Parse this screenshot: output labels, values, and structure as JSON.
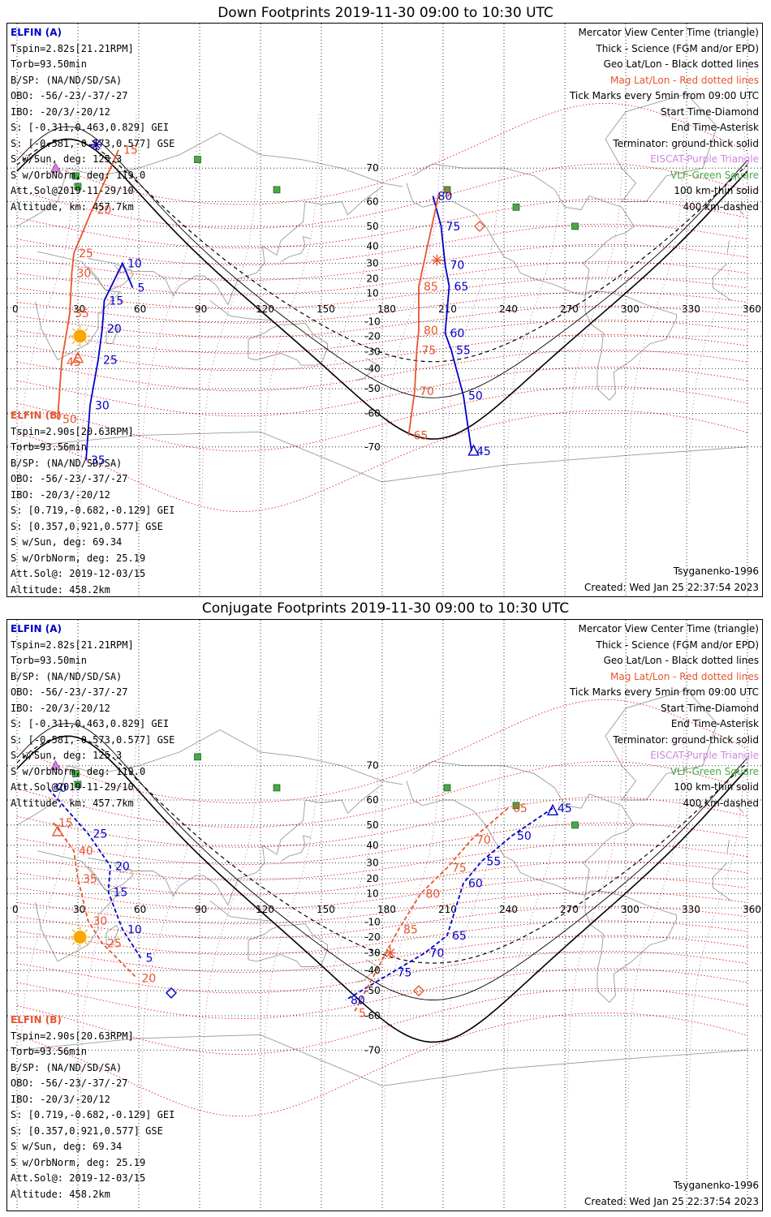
{
  "panels": [
    {
      "title": "Down Footprints 2019-11-30 09:00 to 10:30 UTC",
      "elfin_a": {
        "name": "ELFIN (A)",
        "lines": [
          "Tspin=2.82s[21.21RPM]",
          "Torb=93.50min",
          "B/SP: (NA/ND/SD/SA)",
          "OBO: -56/-23/-37/-27",
          "IBO: -20/3/-20/12",
          "S: [-0.311,0.463,0.829] GEI",
          "S: [-0.581,-0.573,0.577] GSE",
          "S w/Sun, deg: 125.3",
          "S w/OrbNorm, deg: 119.0",
          "Att.Sol@2019-11-29/10",
          "Altitude, km: 457.7km"
        ]
      },
      "elfin_b": {
        "name": "ELFIN (B)",
        "lines": [
          "Tspin=2.90s[20.63RPM]",
          "Torb=93.56min",
          "B/SP: (NA/ND/SD/SA)",
          "OBO: -56/-23/-37/-27",
          "IBO: -20/3/-20/12",
          "S: [0.719,-0.682,-0.129] GEI",
          "S: [0.357,0.921,0.577] GSE",
          "S w/Sun, deg: 69.34",
          "S w/OrbNorm, deg: 25.19",
          "Att.Sol@: 2019-12-03/15",
          "Altitude: 458.2km"
        ]
      },
      "legend": [
        "Mercator View Center Time (triangle)",
        "Thick - Science (FGM and/or EPD)",
        "Geo Lat/Lon - Black dotted lines",
        "Mag Lat/Lon - Red dotted lines",
        "Tick Marks every 5min from 09:00 UTC",
        "Start Time-Diamond",
        "End Time-Asterisk",
        "Terminator: ground-thick solid",
        "EISCAT-Purple Triangle",
        "VLF-Green Square",
        "100 km-thin solid",
        "400 km-dashed"
      ],
      "model": "Tsyganenko-1996",
      "created": "Created: Wed Jan 25 22:37:54 2023",
      "a_ticks": [
        {
          "label": "80",
          "lon": 205,
          "lat": 62
        },
        {
          "label": "75",
          "lon": 209,
          "lat": 50
        },
        {
          "label": "70",
          "lon": 211,
          "lat": 29
        },
        {
          "label": "65",
          "lon": 213,
          "lat": 15
        },
        {
          "label": "60",
          "lon": 211,
          "lat": -18
        },
        {
          "label": "55",
          "lon": 214,
          "lat": -29
        },
        {
          "label": "50",
          "lon": 220,
          "lat": -53
        },
        {
          "label": "45",
          "lon": 224,
          "lat": -71
        },
        {
          "label": "5",
          "lon": 57,
          "lat": 14
        },
        {
          "label": "10",
          "lon": 52,
          "lat": 30
        },
        {
          "label": "15",
          "lon": 43,
          "lat": 5
        },
        {
          "label": "20",
          "lon": 42,
          "lat": -15
        },
        {
          "label": "25",
          "lon": 40,
          "lat": -35
        },
        {
          "label": "30",
          "lon": 36,
          "lat": -57
        },
        {
          "label": "35",
          "lon": 34,
          "lat": -73
        }
      ],
      "b_ticks": [
        {
          "label": "5",
          "lon": 208,
          "lat": 63
        },
        {
          "label": "85",
          "lon": 198,
          "lat": 15
        },
        {
          "label": "80",
          "lon": 198,
          "lat": -16
        },
        {
          "label": "75",
          "lon": 197,
          "lat": -29
        },
        {
          "label": "70",
          "lon": 196,
          "lat": -51
        },
        {
          "label": "65",
          "lon": 193,
          "lat": -67
        },
        {
          "label": "15",
          "lon": 50,
          "lat": 74
        },
        {
          "label": "20",
          "lon": 37,
          "lat": 57
        },
        {
          "label": "25",
          "lon": 28,
          "lat": 36
        },
        {
          "label": "30",
          "lon": 27,
          "lat": 24
        },
        {
          "label": "35",
          "lon": 26,
          "lat": -4
        },
        {
          "label": "45",
          "lon": 22,
          "lat": -36
        },
        {
          "label": "50",
          "lon": 20,
          "lat": -62
        }
      ]
    },
    {
      "title": "Conjugate Footprints 2019-11-30 09:00 to 10:30 UTC",
      "elfin_a": {
        "name": "ELFIN (A)",
        "lines": [
          "Tspin=2.82s[21.21RPM]",
          "Torb=93.50min",
          "B/SP: (NA/ND/SD/SA)",
          "OBO: -56/-23/-37/-27",
          "IBO: -20/3/-20/12",
          "S: [-0.311,0.463,0.829] GEI",
          "S: [-0.581,-0.573,0.577] GSE",
          "S w/Sun, deg: 125.3",
          "S w/OrbNorm, deg: 119.0",
          "Att.Sol@2019-11-29/10",
          "Altitude, km: 457.7km"
        ]
      },
      "elfin_b": {
        "name": "ELFIN (B)",
        "lines": [
          "Tspin=2.90s[20.63RPM]",
          "Torb=93.56min",
          "B/SP: (NA/ND/SD/SA)",
          "OBO: -56/-23/-37/-27",
          "IBO: -20/3/-20/12",
          "S: [0.719,-0.682,-0.129] GEI",
          "S: [0.357,0.921,0.577] GSE",
          "S w/Sun, deg: 69.34",
          "S w/OrbNorm, deg: 25.19",
          "Att.Sol@: 2019-12-03/15",
          "Altitude: 458.2km"
        ]
      },
      "legend": [
        "Mercator View Center Time (triangle)",
        "Thick - Science (FGM and/or EPD)",
        "Geo Lat/Lon - Black dotted lines",
        "Mag Lat/Lon - Red dotted lines",
        "Tick Marks every 5min from 09:00 UTC",
        "Start Time-Diamond",
        "End Time-Asterisk",
        "Terminator: ground-thick solid",
        "EISCAT-Purple Triangle",
        "VLF-Green Square",
        "100 km-thin solid",
        "400 km-dashed"
      ],
      "model": "Tsyganenko-1996",
      "created": "Created: Wed Jan 25 22:37:54 2023",
      "a_ticks": [
        {
          "label": "45",
          "lon": 264,
          "lat": 57
        },
        {
          "label": "50",
          "lon": 244,
          "lat": 45
        },
        {
          "label": "55",
          "lon": 229,
          "lat": 31
        },
        {
          "label": "60",
          "lon": 220,
          "lat": 17
        },
        {
          "label": "65",
          "lon": 212,
          "lat": -19
        },
        {
          "label": "70",
          "lon": 201,
          "lat": -30
        },
        {
          "label": "75",
          "lon": 185,
          "lat": -41
        },
        {
          "label": "80",
          "lon": 162,
          "lat": -54
        },
        {
          "label": "5",
          "lon": 61,
          "lat": -33
        },
        {
          "label": "10",
          "lon": 52,
          "lat": -15
        },
        {
          "label": "15",
          "lon": 45,
          "lat": 11
        },
        {
          "label": "20",
          "lon": 46,
          "lat": 28
        },
        {
          "label": "25",
          "lon": 35,
          "lat": 46
        },
        {
          "label": "30",
          "lon": 15,
          "lat": 64
        }
      ],
      "b_ticks": [
        {
          "label": "65",
          "lon": 242,
          "lat": 57
        },
        {
          "label": "70",
          "lon": 224,
          "lat": 43
        },
        {
          "label": "75",
          "lon": 212,
          "lat": 27
        },
        {
          "label": "80",
          "lon": 199,
          "lat": 10
        },
        {
          "label": "85",
          "lon": 188,
          "lat": -15
        },
        {
          "label": "5",
          "lon": 166,
          "lat": -59
        },
        {
          "label": "15",
          "lon": 18,
          "lat": 51
        },
        {
          "label": "40",
          "lon": 28,
          "lat": 37
        },
        {
          "label": "35",
          "lon": 30,
          "lat": 20
        },
        {
          "label": "30",
          "lon": 35,
          "lat": -9
        },
        {
          "label": "25",
          "lon": 42,
          "lat": -24
        },
        {
          "label": "20",
          "lon": 59,
          "lat": -44
        }
      ]
    }
  ],
  "map": {
    "projection": "mercator",
    "lon_ticks": [
      "0",
      "30",
      "60",
      "90",
      "120",
      "150",
      "180",
      "210",
      "240",
      "270",
      "300",
      "330",
      "360"
    ],
    "lat_ticks": [
      "70",
      "60",
      "50",
      "40",
      "30",
      "20",
      "10",
      "-10",
      "-20",
      "-30",
      "-40",
      "-50",
      "-60",
      "-70"
    ],
    "colors": {
      "elfin_a": "#0000cc",
      "elfin_b": "#e8542e",
      "vlf": "#44aa44",
      "eiscat": "#cc88dd",
      "sun": "#f8a800",
      "mag_grid": "#e80000"
    },
    "vlf_stations": [
      [
        89,
        72
      ],
      [
        29,
        68
      ],
      [
        128,
        64
      ],
      [
        30,
        65
      ],
      [
        212,
        64
      ],
      [
        246,
        58
      ],
      [
        275,
        50
      ]
    ],
    "eiscat_stations": [
      [
        19,
        70
      ]
    ]
  }
}
